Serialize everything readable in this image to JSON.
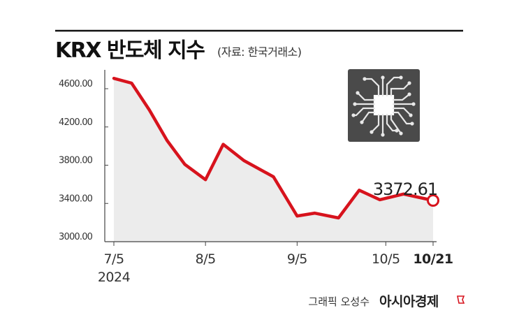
{
  "header": {
    "title": "KRX 반도체 지수",
    "subtitle": "(자료: 한국거래소)"
  },
  "footer": {
    "credit": "그래픽 오성수",
    "brand": "아시아경제"
  },
  "colors": {
    "line": "#d7131d",
    "area": "#ececec",
    "text": "#333333",
    "icon_bg": "#4a4a4a"
  },
  "icons": [
    "semiconductor-chip-icon",
    "brand-flag-icon"
  ],
  "chart_data": {
    "type": "area",
    "title": "KRX 반도체 지수",
    "subtitle": "(자료: 한국거래소)",
    "xlabel": "",
    "ylabel": "",
    "ylim": [
      3000,
      4600
    ],
    "y_ticks": [
      "4600.00",
      "4200.00",
      "3800.00",
      "3400.00",
      "3000.00"
    ],
    "x_ticks": [
      {
        "date": "2024-07-05",
        "label": "7/5",
        "label2": "2024"
      },
      {
        "date": "2024-08-05",
        "label": "8/5"
      },
      {
        "date": "2024-09-05",
        "label": "9/5"
      },
      {
        "date": "2024-10-05",
        "label": "10/5"
      },
      {
        "date": "2024-10-21",
        "label": "10/21",
        "bold": true
      }
    ],
    "grid": false,
    "x": [
      "2024-07-05",
      "2024-07-11",
      "2024-07-17",
      "2024-07-23",
      "2024-07-29",
      "2024-08-05",
      "2024-08-11",
      "2024-08-18",
      "2024-08-28",
      "2024-09-05",
      "2024-09-11",
      "2024-09-19",
      "2024-09-26",
      "2024-10-03",
      "2024-10-11",
      "2024-10-21"
    ],
    "series": [
      {
        "values": [
          4650,
          4600,
          4320,
          4000,
          3750,
          3590,
          3960,
          3790,
          3620,
          3210,
          3240,
          3190,
          3480,
          3380,
          3440,
          3372.61
        ]
      }
    ],
    "annotation": {
      "text": "3372.61",
      "date": "2024-10-21",
      "value": 3372.61
    }
  }
}
